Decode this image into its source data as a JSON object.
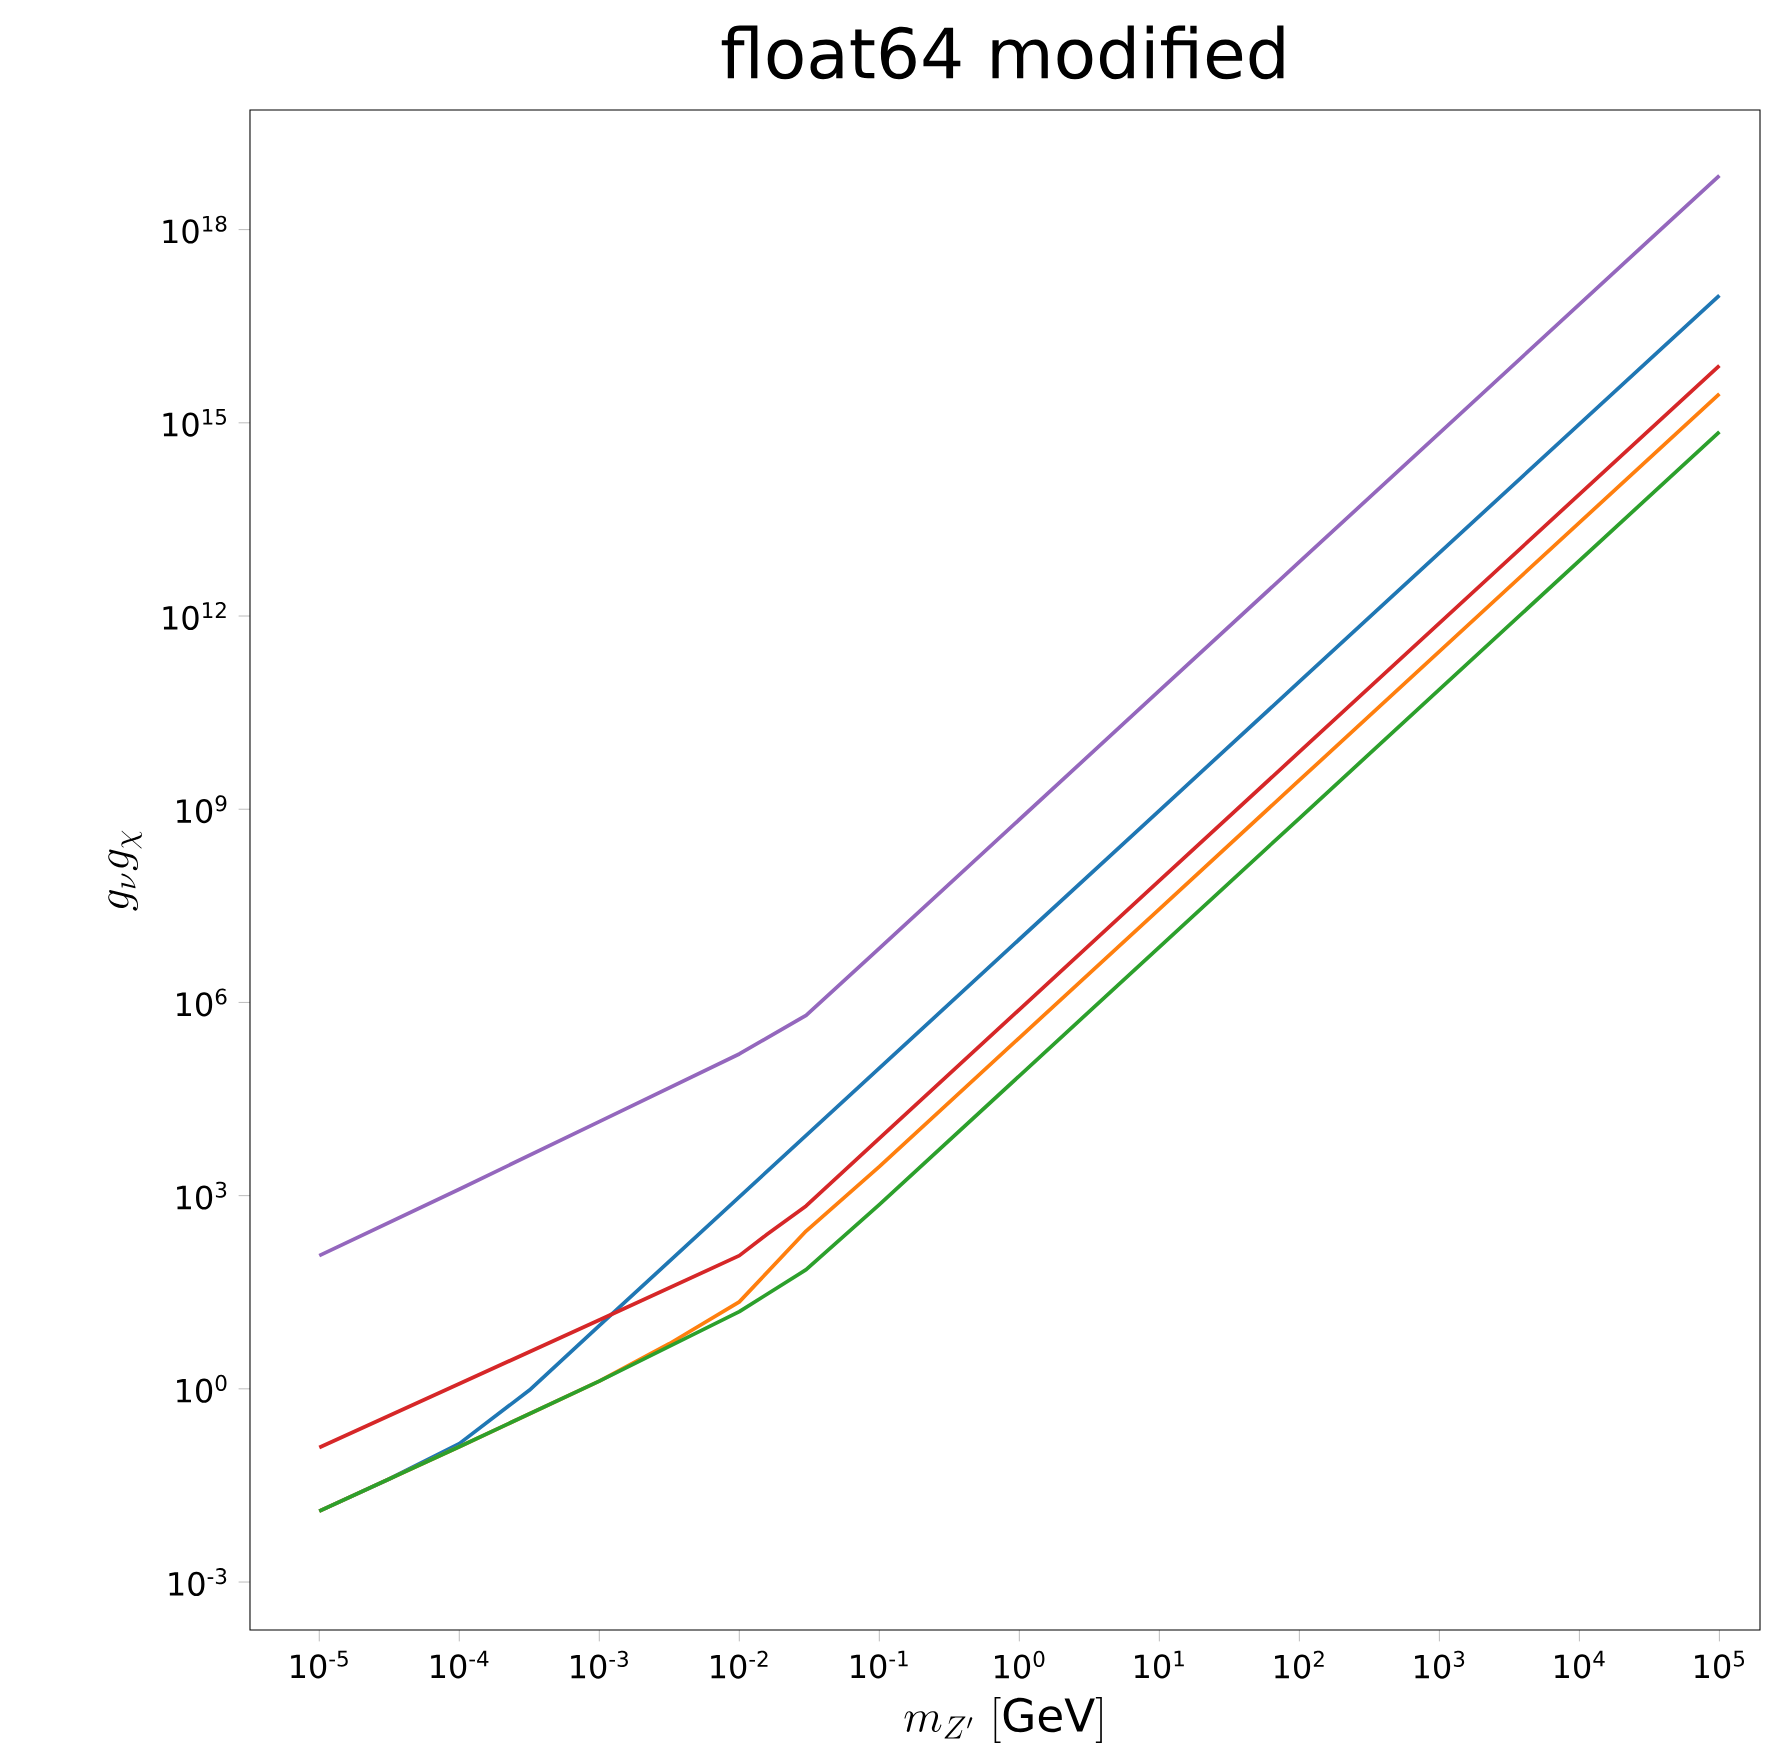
{
  "chart_data": {
    "type": "line",
    "title": "float64 modified",
    "xlabel": "m_{Z'}\\ \\mathrm{[GeV]}",
    "ylabel": "g_{\\nu}g_{\\chi}",
    "log": "xy",
    "xlim": [
      3.2e-06,
      195000.0
    ],
    "ylim": [
      0.00018,
      7.2e+19
    ],
    "xticks": [
      {
        "value": 1e-05,
        "label": "10$^{-5}$"
      },
      {
        "value": 0.0001,
        "label": "10$^{-4}$"
      },
      {
        "value": 0.001,
        "label": "10$^{-3}$"
      },
      {
        "value": 0.01,
        "label": "10$^{-2}$"
      },
      {
        "value": 0.1,
        "label": "10$^{-1}$"
      },
      {
        "value": 1,
        "label": "10$^{0}$"
      },
      {
        "value": 10,
        "label": "10$^{1}$"
      },
      {
        "value": 100,
        "label": "10$^{2}$"
      },
      {
        "value": 1000,
        "label": "10$^{3}$"
      },
      {
        "value": 10000,
        "label": "10$^{4}$"
      },
      {
        "value": 100000,
        "label": "10$^{5}$"
      }
    ],
    "yticks": [
      {
        "value": 0.001,
        "label": "10$^{-3}$"
      },
      {
        "value": 1,
        "label": "10$^{0}$"
      },
      {
        "value": 1000.0,
        "label": "10$^{3}$"
      },
      {
        "value": 1000000.0,
        "label": "10$^{6}$"
      },
      {
        "value": 1000000000.0,
        "label": "10$^{9}$"
      },
      {
        "value": 1000000000000.0,
        "label": "10$^{12}$"
      },
      {
        "value": 1000000000000000.0,
        "label": "10$^{15}$"
      },
      {
        "value": 1e+18,
        "label": "10$^{18}$"
      }
    ],
    "series": [
      {
        "color": "#1f77b4",
        "x": [
          1e-05,
          3.16e-05,
          0.0001,
          0.000316,
          0.001,
          0.01,
          0.1,
          1,
          10,
          100,
          1000,
          10000,
          100000
        ],
        "values": [
          0.0126,
          0.0398,
          0.141,
          0.95,
          9.55,
          955,
          95500,
          9550000.0,
          955000000.0,
          95500000000.0,
          9550000000000.0,
          955000000000000.0,
          9.55e+16
        ]
      },
      {
        "color": "#ff7f0e",
        "x": [
          1e-05,
          0.0001,
          0.001,
          0.00316,
          0.01,
          0.03,
          0.1,
          1,
          10,
          100,
          1000,
          10000,
          100000
        ],
        "values": [
          0.0126,
          0.126,
          1.32,
          5.01,
          22.4,
          282,
          2818,
          282000.0,
          28200000.0,
          2820000000.0,
          282000000000.0,
          28200000000000.0,
          2820000000000000.0
        ]
      },
      {
        "color": "#2ca02c",
        "x": [
          1e-05,
          0.0001,
          0.001,
          0.01,
          0.03,
          0.1,
          1,
          10,
          100,
          1000,
          10000,
          100000
        ],
        "values": [
          0.0126,
          0.126,
          1.32,
          15.8,
          70.8,
          724,
          72400,
          7240000.0,
          724000000.0,
          72400000000.0,
          7240000000000.0,
          724000000000000.0
        ]
      },
      {
        "color": "#d62728",
        "x": [
          1e-05,
          0.0001,
          0.001,
          0.01,
          0.0158,
          0.03,
          0.1,
          1,
          10,
          100,
          1000,
          10000,
          100000
        ],
        "values": [
          0.123,
          1.2,
          11.7,
          117,
          251,
          692,
          7762,
          776000.0,
          77600000.0,
          7760000000.0,
          776000000000.0,
          77600000000000.0,
          7760000000000000.0
        ]
      },
      {
        "color": "#9467bd",
        "x": [
          1e-05,
          0.0001,
          0.001,
          0.01,
          0.0158,
          0.03,
          0.1,
          1,
          10,
          100,
          1000,
          10000,
          100000
        ],
        "values": [
          117,
          1259,
          14125,
          158489,
          281838,
          630957,
          6920000.0,
          692000000.0,
          69200000000.0,
          6920000000000.0,
          692000000000000.0,
          6.92e+16,
          6.92e+18
        ]
      }
    ]
  }
}
